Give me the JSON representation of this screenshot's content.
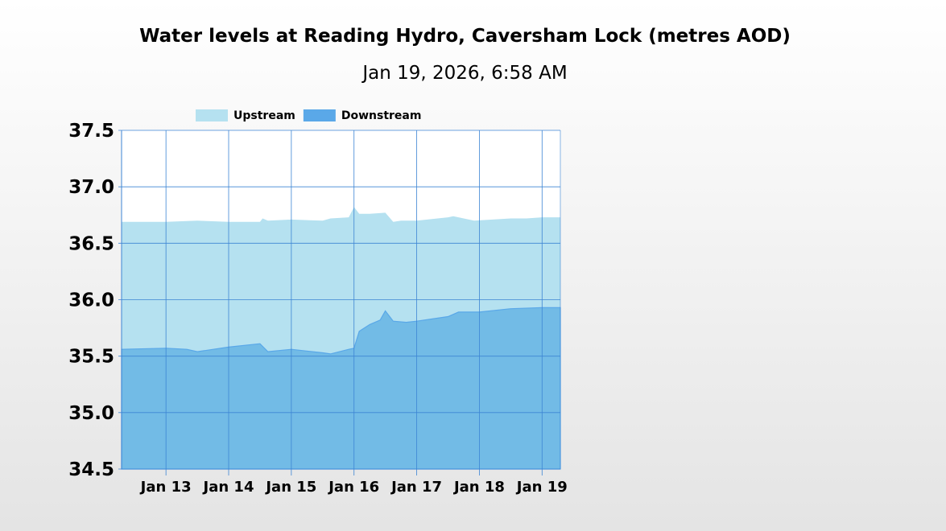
{
  "chart_data": {
    "type": "area",
    "title": "Water levels at Reading Hydro, Caversham Lock (metres AOD)",
    "subtitle": "Jan 19, 2026, 6:58 AM",
    "xlabel": "",
    "ylabel": "",
    "x_range": [
      "2026-01-12T07:00",
      "2026-01-19T07:00"
    ],
    "ylim": [
      34.5,
      37.5
    ],
    "y_ticks": [
      "37.5",
      "37.0",
      "36.5",
      "36.0",
      "35.5",
      "35.0",
      "34.5"
    ],
    "x_ticks": [
      {
        "x": "2026-01-13",
        "label": "Jan 13"
      },
      {
        "x": "2026-01-14",
        "label": "Jan 14"
      },
      {
        "x": "2026-01-15",
        "label": "Jan 15"
      },
      {
        "x": "2026-01-16",
        "label": "Jan 16"
      },
      {
        "x": "2026-01-17",
        "label": "Jan 17"
      },
      {
        "x": "2026-01-18",
        "label": "Jan 18"
      },
      {
        "x": "2026-01-19",
        "label": "Jan 19"
      }
    ],
    "grid": true,
    "legend_position": "top-left",
    "series": [
      {
        "name": "Upstream",
        "color": "#b5e1f0",
        "x": [
          "2026-01-12T07:00",
          "2026-01-13T00:00",
          "2026-01-13T12:00",
          "2026-01-14T00:00",
          "2026-01-14T12:00",
          "2026-01-14T13:00",
          "2026-01-14T15:00",
          "2026-01-15T00:00",
          "2026-01-15T12:00",
          "2026-01-15T15:00",
          "2026-01-15T22:00",
          "2026-01-16T00:00",
          "2026-01-16T02:00",
          "2026-01-16T06:00",
          "2026-01-16T12:00",
          "2026-01-16T15:00",
          "2026-01-16T18:00",
          "2026-01-17T00:00",
          "2026-01-17T12:00",
          "2026-01-17T14:00",
          "2026-01-17T22:00",
          "2026-01-18T12:00",
          "2026-01-18T18:00",
          "2026-01-19T00:00",
          "2026-01-19T07:00"
        ],
        "values": [
          36.69,
          36.69,
          36.7,
          36.69,
          36.69,
          36.72,
          36.7,
          36.71,
          36.7,
          36.72,
          36.73,
          36.82,
          36.76,
          36.76,
          36.77,
          36.69,
          36.7,
          36.7,
          36.73,
          36.74,
          36.7,
          36.72,
          36.72,
          36.73,
          36.73
        ]
      },
      {
        "name": "Downstream",
        "color": "#5aa8e8",
        "x": [
          "2026-01-12T07:00",
          "2026-01-13T00:00",
          "2026-01-13T08:00",
          "2026-01-13T12:00",
          "2026-01-14T00:00",
          "2026-01-14T12:00",
          "2026-01-14T15:00",
          "2026-01-15T00:00",
          "2026-01-15T12:00",
          "2026-01-15T15:00",
          "2026-01-15T22:00",
          "2026-01-16T00:00",
          "2026-01-16T02:00",
          "2026-01-16T06:00",
          "2026-01-16T10:00",
          "2026-01-16T12:00",
          "2026-01-16T15:00",
          "2026-01-16T20:00",
          "2026-01-17T00:00",
          "2026-01-17T06:00",
          "2026-01-17T12:00",
          "2026-01-17T16:00",
          "2026-01-18T00:00",
          "2026-01-18T12:00",
          "2026-01-19T00:00",
          "2026-01-19T07:00"
        ],
        "values": [
          35.56,
          35.57,
          35.56,
          35.54,
          35.58,
          35.61,
          35.54,
          35.56,
          35.53,
          35.52,
          35.56,
          35.57,
          35.72,
          35.78,
          35.82,
          35.9,
          35.81,
          35.8,
          35.81,
          35.83,
          35.85,
          35.89,
          35.89,
          35.92,
          35.93,
          35.93
        ]
      }
    ]
  }
}
